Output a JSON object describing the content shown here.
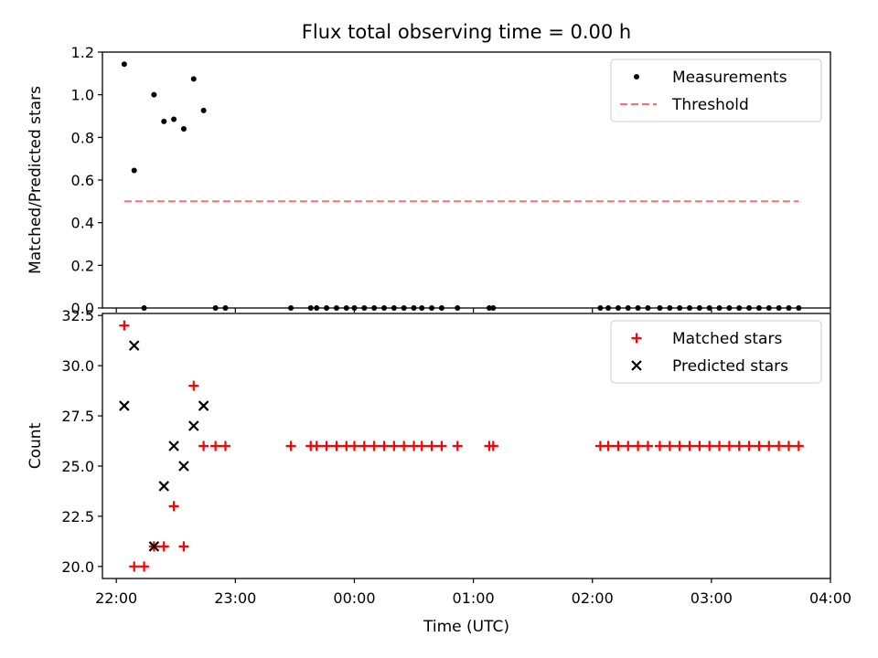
{
  "chart_data": [
    {
      "type": "scatter",
      "title": "Flux total observing time = 0.00 h",
      "xlabel": "",
      "ylabel": "Matched/Predicted stars",
      "x_ticks": [
        "22:00",
        "23:00",
        "00:00",
        "01:00",
        "02:00",
        "03:00",
        "04:00"
      ],
      "x_ticks_labeled": false,
      "xlim": [
        "21:53",
        "04:00"
      ],
      "ylim": [
        0,
        1.2
      ],
      "y_ticks": [
        "0.0",
        "0.2",
        "0.4",
        "0.6",
        "0.8",
        "1.0",
        "1.2"
      ],
      "legend_position": "upper right",
      "series": [
        {
          "name": "Measurements",
          "color": "#000000",
          "marker": "dot",
          "points": [
            [
              "22:04",
              1.143
            ],
            [
              "22:09",
              0.645
            ],
            [
              "22:14",
              0.0
            ],
            [
              "22:19",
              1.0
            ],
            [
              "22:24",
              0.875
            ],
            [
              "22:29",
              0.885
            ],
            [
              "22:34",
              0.84
            ],
            [
              "22:39",
              1.074
            ],
            [
              "22:44",
              0.926
            ],
            [
              "22:50",
              0.0
            ],
            [
              "22:55",
              0.0
            ],
            [
              "23:28",
              0.0
            ],
            [
              "23:38",
              0.0
            ],
            [
              "23:41",
              0.0
            ],
            [
              "23:46",
              0.0
            ],
            [
              "23:51",
              0.0
            ],
            [
              "23:56",
              0.0
            ],
            [
              "00:00",
              0.0
            ],
            [
              "00:05",
              0.0
            ],
            [
              "00:10",
              0.0
            ],
            [
              "00:15",
              0.0
            ],
            [
              "00:20",
              0.0
            ],
            [
              "00:25",
              0.0
            ],
            [
              "00:30",
              0.0
            ],
            [
              "00:34",
              0.0
            ],
            [
              "00:39",
              0.0
            ],
            [
              "00:44",
              0.0
            ],
            [
              "00:52",
              0.0
            ],
            [
              "01:08",
              0.0
            ],
            [
              "01:10",
              0.0
            ],
            [
              "02:04",
              0.0
            ],
            [
              "02:08",
              0.0
            ],
            [
              "02:13",
              0.0
            ],
            [
              "02:18",
              0.0
            ],
            [
              "02:23",
              0.0
            ],
            [
              "02:28",
              0.0
            ],
            [
              "02:34",
              0.0
            ],
            [
              "02:39",
              0.0
            ],
            [
              "02:44",
              0.0
            ],
            [
              "02:49",
              0.0
            ],
            [
              "02:54",
              0.0
            ],
            [
              "02:59",
              0.0
            ],
            [
              "03:04",
              0.0
            ],
            [
              "03:09",
              0.0
            ],
            [
              "03:14",
              0.0
            ],
            [
              "03:19",
              0.0
            ],
            [
              "03:24",
              0.0
            ],
            [
              "03:29",
              0.0
            ],
            [
              "03:34",
              0.0
            ],
            [
              "03:39",
              0.0
            ],
            [
              "03:44",
              0.0
            ]
          ]
        },
        {
          "name": "Threshold",
          "color": "#ff7070",
          "line_style": "dashed",
          "points": [
            [
              "22:04",
              0.5
            ],
            [
              "03:44",
              0.5
            ]
          ]
        }
      ]
    },
    {
      "type": "scatter",
      "title": "",
      "xlabel": "Time (UTC)",
      "ylabel": "Count",
      "x_ticks": [
        "22:00",
        "23:00",
        "00:00",
        "01:00",
        "02:00",
        "03:00",
        "04:00"
      ],
      "xlim": [
        "21:53",
        "04:00"
      ],
      "ylim": [
        19.4,
        32.6
      ],
      "y_ticks": [
        "20.0",
        "22.5",
        "25.0",
        "27.5",
        "30.0",
        "32.5"
      ],
      "legend_position": "upper right",
      "series": [
        {
          "name": "Matched stars",
          "color": "#ff0000",
          "marker": "plus",
          "points": [
            [
              "22:04",
              32
            ],
            [
              "22:09",
              20
            ],
            [
              "22:14",
              20
            ],
            [
              "22:19",
              21
            ],
            [
              "22:24",
              21
            ],
            [
              "22:29",
              23
            ],
            [
              "22:34",
              21
            ],
            [
              "22:39",
              29
            ],
            [
              "22:44",
              26
            ],
            [
              "22:50",
              26
            ],
            [
              "22:55",
              26
            ],
            [
              "23:28",
              26
            ],
            [
              "23:38",
              26
            ],
            [
              "23:41",
              26
            ],
            [
              "23:46",
              26
            ],
            [
              "23:51",
              26
            ],
            [
              "23:56",
              26
            ],
            [
              "00:00",
              26
            ],
            [
              "00:05",
              26
            ],
            [
              "00:10",
              26
            ],
            [
              "00:15",
              26
            ],
            [
              "00:20",
              26
            ],
            [
              "00:25",
              26
            ],
            [
              "00:30",
              26
            ],
            [
              "00:34",
              26
            ],
            [
              "00:39",
              26
            ],
            [
              "00:44",
              26
            ],
            [
              "00:52",
              26
            ],
            [
              "01:08",
              26
            ],
            [
              "01:10",
              26
            ],
            [
              "02:04",
              26
            ],
            [
              "02:08",
              26
            ],
            [
              "02:13",
              26
            ],
            [
              "02:18",
              26
            ],
            [
              "02:23",
              26
            ],
            [
              "02:28",
              26
            ],
            [
              "02:34",
              26
            ],
            [
              "02:39",
              26
            ],
            [
              "02:44",
              26
            ],
            [
              "02:49",
              26
            ],
            [
              "02:54",
              26
            ],
            [
              "02:59",
              26
            ],
            [
              "03:04",
              26
            ],
            [
              "03:09",
              26
            ],
            [
              "03:14",
              26
            ],
            [
              "03:19",
              26
            ],
            [
              "03:24",
              26
            ],
            [
              "03:29",
              26
            ],
            [
              "03:34",
              26
            ],
            [
              "03:39",
              26
            ],
            [
              "03:44",
              26
            ]
          ]
        },
        {
          "name": "Predicted stars",
          "color": "#000000",
          "marker": "x",
          "points": [
            [
              "22:04",
              28
            ],
            [
              "22:09",
              31
            ],
            [
              "22:19",
              21
            ],
            [
              "22:24",
              24
            ],
            [
              "22:29",
              26
            ],
            [
              "22:34",
              25
            ],
            [
              "22:39",
              27
            ],
            [
              "22:44",
              28
            ]
          ]
        }
      ]
    }
  ]
}
